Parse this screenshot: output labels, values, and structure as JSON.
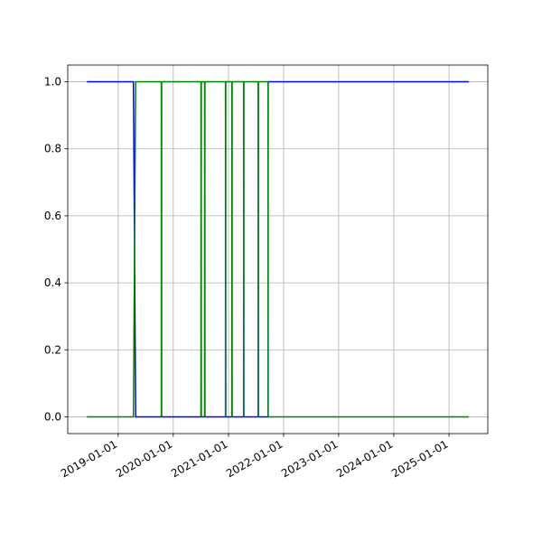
{
  "chart_data": {
    "type": "line",
    "x": [
      "2018-06-08",
      "2019-04-12",
      "2019-04-27",
      "2019-10-14",
      "2019-10-15",
      "2019-10-16",
      "2020-07-03",
      "2020-07-04",
      "2020-07-05",
      "2020-07-27",
      "2020-07-28",
      "2020-07-29",
      "2020-12-12",
      "2020-12-13",
      "2020-12-14",
      "2021-01-23",
      "2021-01-24",
      "2021-01-25",
      "2021-04-11",
      "2021-04-12",
      "2021-04-13",
      "2021-07-16",
      "2021-07-17",
      "2021-07-18",
      "2021-09-20",
      "2021-09-21",
      "2025-05-12"
    ],
    "series": [
      {
        "color": "#0000ff",
        "values": [
          1,
          1,
          0,
          0,
          1,
          0,
          0,
          1,
          0,
          0,
          1,
          0,
          0,
          1,
          0,
          0,
          1,
          0,
          0,
          1,
          0,
          0,
          1,
          0,
          0,
          1,
          1
        ]
      },
      {
        "color": "#008000",
        "values": [
          0,
          0,
          1,
          1,
          0,
          1,
          1,
          0,
          1,
          1,
          0,
          1,
          1,
          0,
          1,
          1,
          0,
          1,
          1,
          0,
          1,
          1,
          0,
          1,
          1,
          0,
          0
        ]
      }
    ],
    "xlim": [
      "2018-02-01",
      "2025-09-15"
    ],
    "xticks": [
      "2019-01-01",
      "2020-01-01",
      "2021-01-01",
      "2022-01-01",
      "2023-01-01",
      "2024-01-01",
      "2025-01-01"
    ],
    "ylim": [
      -0.05,
      1.05
    ],
    "yticks": [
      {
        "value": 0,
        "label": "0.0"
      },
      {
        "value": 0.2,
        "label": "0.2"
      },
      {
        "value": 0.4,
        "label": "0.4"
      },
      {
        "value": 0.6,
        "label": "0.6"
      },
      {
        "value": 0.8,
        "label": "0.8"
      },
      {
        "value": 1,
        "label": "1.0"
      }
    ],
    "grid": true
  }
}
